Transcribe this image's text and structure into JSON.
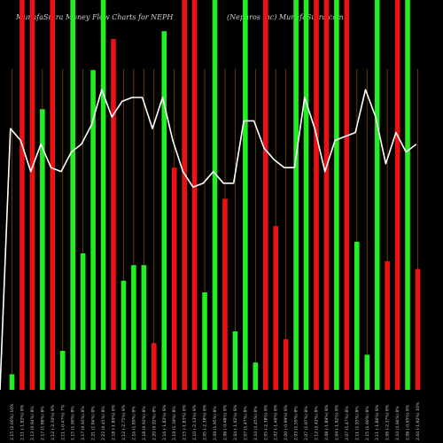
{
  "header": {
    "left": "MunafaSutra  Money Flow  Charts for NEPH",
    "right": "(Nephros Inc) MunafaSutra.com"
  },
  "colors": {
    "background": "#000000",
    "up": "#22ee22",
    "down": "#ee1111",
    "grid": "#7a4a00",
    "line": "#ffffff"
  },
  "chart_data": {
    "type": "bar",
    "overlay": "line",
    "ylim": [
      0,
      100
    ],
    "categories": [
      "2.15 (2.00%) 10%",
      "2.11 (-1.82%) 8%",
      "2.13 (0.94%) 8%",
      "2.17 (1.88%) 8%",
      "2.12 (-2.30%) 8%",
      "2.11 (-0.47%) 7%",
      "2.15 (1.90%) 8%",
      "2.17 (0.93%) 8%",
      "2.21 (1.84%) 8%",
      "2.22 (0.45%) 8%",
      "2.18 (-1.80%) 8%",
      "2.12 (-2.75%) 8%",
      "2.16 (1.89%) 8%",
      "2.18 (0.93%) 8%",
      "2.20 (0.92%) 8%",
      "2.16 (-1.82%) 8%",
      "2.19 (1.39%) 8%",
      "2.15 (-1.83%) 8%",
      "2.10 (-2.33%) 8%",
      "2.05 (-2.38%) 8%",
      "2.09 (1.95%) 8%",
      "2.08 (-0.48%) 8%",
      "2.04 (-1.92%) 8%",
      "2.07 (1.47%) 8%",
      "2.10 (1.45%) 8%",
      "2.05 (-2.38%) 8%",
      "2.02 (-1.46%) 8%",
      "2.00 (-0.99%) 8%",
      "2.03 (1.50%) 8%",
      "2.07 (1.97%) 8%",
      "2.12 (2.42%) 8%",
      "2.08 (-1.89%) 8%",
      "2.04 (-1.92%) 8%",
      "2.07 (1.47%) 8%",
      "2.11 (1.93%) 8%",
      "2.15 (1.90%) 8%",
      "2.11 (-1.86%) 8%",
      "2.06 (-2.37%) 8%",
      "2.10 (1.94%) 8%",
      "2.08 (-0.95%) 8%",
      "2.04 (-1.92%) 10%"
    ],
    "bars": [
      {
        "dir": "up",
        "value": 4
      },
      {
        "dir": "down",
        "value": 100
      },
      {
        "dir": "down",
        "value": 100
      },
      {
        "dir": "up",
        "value": 72
      },
      {
        "dir": "down",
        "value": 100
      },
      {
        "dir": "up",
        "value": 10
      },
      {
        "dir": "up",
        "value": 100
      },
      {
        "dir": "up",
        "value": 35
      },
      {
        "dir": "up",
        "value": 82
      },
      {
        "dir": "up",
        "value": 100
      },
      {
        "dir": "down",
        "value": 90
      },
      {
        "dir": "up",
        "value": 28
      },
      {
        "dir": "up",
        "value": 32
      },
      {
        "dir": "up",
        "value": 32
      },
      {
        "dir": "down",
        "value": 12
      },
      {
        "dir": "up",
        "value": 92
      },
      {
        "dir": "down",
        "value": 57
      },
      {
        "dir": "down",
        "value": 100
      },
      {
        "dir": "down",
        "value": 100
      },
      {
        "dir": "up",
        "value": 25
      },
      {
        "dir": "up",
        "value": 100
      },
      {
        "dir": "down",
        "value": 49
      },
      {
        "dir": "up",
        "value": 15
      },
      {
        "dir": "up",
        "value": 100
      },
      {
        "dir": "up",
        "value": 7
      },
      {
        "dir": "down",
        "value": 100
      },
      {
        "dir": "down",
        "value": 42
      },
      {
        "dir": "down",
        "value": 13
      },
      {
        "dir": "up",
        "value": 100
      },
      {
        "dir": "up",
        "value": 100
      },
      {
        "dir": "down",
        "value": 100
      },
      {
        "dir": "down",
        "value": 100
      },
      {
        "dir": "up",
        "value": 100
      },
      {
        "dir": "down",
        "value": 100
      },
      {
        "dir": "up",
        "value": 38
      },
      {
        "dir": "up",
        "value": 9
      },
      {
        "dir": "up",
        "value": 100
      },
      {
        "dir": "down",
        "value": 33
      },
      {
        "dir": "down",
        "value": 100
      },
      {
        "dir": "up",
        "value": 100
      },
      {
        "dir": "down",
        "value": 31
      }
    ],
    "line_values": [
      67,
      64,
      56,
      63,
      57,
      56,
      61,
      63,
      68,
      77,
      70,
      74,
      75,
      75,
      67,
      75,
      64,
      56,
      52,
      53,
      56,
      53,
      53,
      69,
      69,
      62,
      59,
      57,
      57,
      75,
      67,
      56,
      64,
      65,
      66,
      77,
      70,
      58,
      66,
      61,
      63
    ]
  }
}
